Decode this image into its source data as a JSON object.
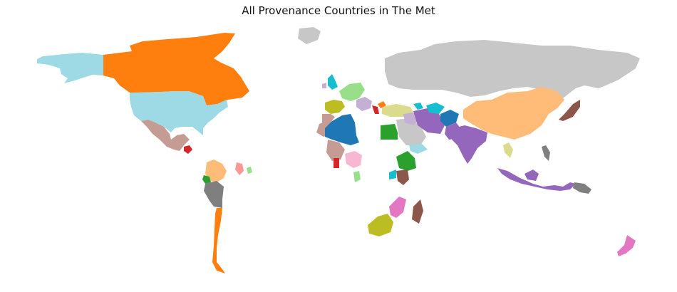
{
  "title": "All Provenance Countries in The Met",
  "colors": {
    "no_data": "#c7c7c7",
    "blue": "#1f77b4",
    "orange": "#ff7f0e",
    "light_orange": "#ffbb78",
    "green": "#2ca02c",
    "light_green": "#98df8a",
    "red": "#d62728",
    "salmon": "#ff9896",
    "purple": "#9467bd",
    "lavender": "#c5b0d5",
    "brown": "#8c564b",
    "tan": "#c49c94",
    "pink": "#e377c2",
    "light_pink": "#f7b6d2",
    "gray": "#7f7f7f",
    "olive": "#bcbd22",
    "khaki": "#dbdb8d",
    "cyan": "#17becf",
    "light_cyan": "#9edae5"
  },
  "regions": [
    {
      "name": "Alaska",
      "color": "light_cyan"
    },
    {
      "name": "Canada",
      "color": "orange"
    },
    {
      "name": "United States",
      "color": "light_cyan"
    },
    {
      "name": "Mexico",
      "color": "tan"
    },
    {
      "name": "Guatemala",
      "color": "red"
    },
    {
      "name": "Colombia",
      "color": "light_orange"
    },
    {
      "name": "Venezuela",
      "color": "salmon"
    },
    {
      "name": "Caribbean",
      "color": "light_green"
    },
    {
      "name": "Ecuador",
      "color": "green"
    },
    {
      "name": "Peru",
      "color": "gray"
    },
    {
      "name": "Chile",
      "color": "orange"
    },
    {
      "name": "Greenland",
      "color": "no_data"
    },
    {
      "name": "Russia",
      "color": "no_data"
    },
    {
      "name": "United Kingdom",
      "color": "cyan"
    },
    {
      "name": "Ireland",
      "color": "lavender"
    },
    {
      "name": "Germany",
      "color": "light_green"
    },
    {
      "name": "France",
      "color": "olive"
    },
    {
      "name": "Spain",
      "color": "tan"
    },
    {
      "name": "Italy",
      "color": "red"
    },
    {
      "name": "Balkans",
      "color": "lavender"
    },
    {
      "name": "Turkey",
      "color": "khaki"
    },
    {
      "name": "Cyprus",
      "color": "orange"
    },
    {
      "name": "Caucasus",
      "color": "cyan"
    },
    {
      "name": "Morocco",
      "color": "tan"
    },
    {
      "name": "Algeria",
      "color": "blue"
    },
    {
      "name": "Mauritania",
      "color": "tan"
    },
    {
      "name": "Egypt",
      "color": "green"
    },
    {
      "name": "Ghana",
      "color": "red"
    },
    {
      "name": "Nigeria",
      "color": "light_pink"
    },
    {
      "name": "Cameroon",
      "color": "light_green"
    },
    {
      "name": "Ethiopia",
      "color": "green"
    },
    {
      "name": "Somalia",
      "color": "cyan"
    },
    {
      "name": "Tanzania",
      "color": "brown"
    },
    {
      "name": "Mozambique",
      "color": "pink"
    },
    {
      "name": "Madagascar",
      "color": "brown"
    },
    {
      "name": "South Africa",
      "color": "olive"
    },
    {
      "name": "Saudi Arabia",
      "color": "no_data"
    },
    {
      "name": "Yemen",
      "color": "light_cyan"
    },
    {
      "name": "Iraq",
      "color": "lavender"
    },
    {
      "name": "Iran",
      "color": "purple"
    },
    {
      "name": "Turkmenistan",
      "color": "cyan"
    },
    {
      "name": "Afghanistan",
      "color": "blue"
    },
    {
      "name": "Pakistan",
      "color": "purple"
    },
    {
      "name": "India",
      "color": "purple"
    },
    {
      "name": "China",
      "color": "light_orange"
    },
    {
      "name": "Japan",
      "color": "brown"
    },
    {
      "name": "Thailand",
      "color": "khaki"
    },
    {
      "name": "Philippines",
      "color": "gray"
    },
    {
      "name": "Indonesia",
      "color": "purple"
    },
    {
      "name": "New Guinea",
      "color": "gray"
    },
    {
      "name": "New Zealand",
      "color": "pink"
    }
  ]
}
